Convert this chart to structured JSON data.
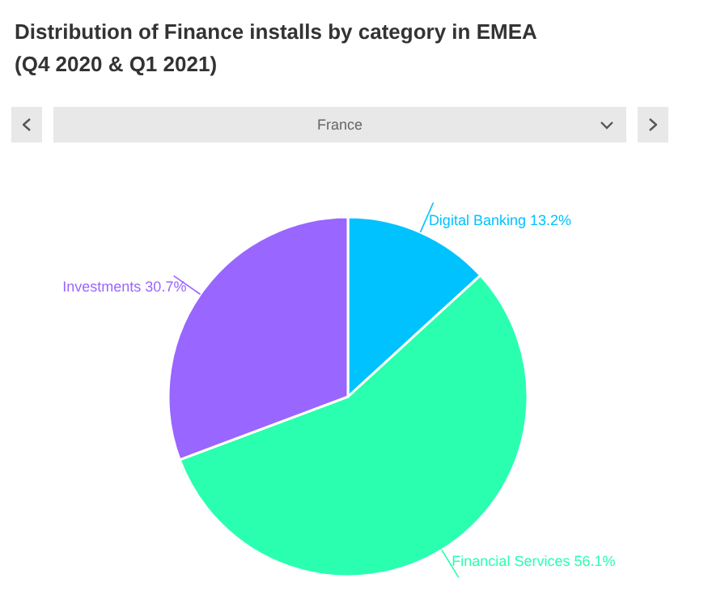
{
  "chart_data": {
    "type": "pie",
    "title": "Distribution of Finance installs by category in EMEA",
    "subtitle": "(Q4 2020 & Q1 2021)",
    "annotations": [
      "France"
    ],
    "categories": [
      "Digital Banking",
      "Financial Services",
      "Investments"
    ],
    "values": [
      13.2,
      56.1,
      30.7
    ],
    "value_labels": [
      "13.2%",
      "56.1%",
      "30.7%"
    ],
    "colors": [
      "#00c2ff",
      "#2affb0",
      "#9966ff"
    ],
    "legend": false
  }
}
